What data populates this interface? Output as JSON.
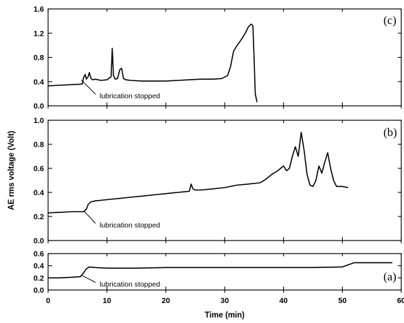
{
  "chart_data": {
    "type": "line",
    "xlabel": "Time (min)",
    "ylabel": "AE rms voltage (Volt)",
    "xlim": [
      0,
      60
    ],
    "x_ticks": [
      0,
      10,
      20,
      30,
      40,
      50,
      60
    ],
    "x_tick_labels": [
      "0",
      "10",
      "20",
      "30",
      "40",
      "50",
      "60"
    ],
    "grid": false,
    "panels": [
      {
        "label": "(c)",
        "ylim": [
          0,
          1.6
        ],
        "y_ticks": [
          0,
          0.4,
          0.8,
          1.2,
          1.6
        ],
        "y_tick_labels": [
          "0.0",
          "0.4",
          "0.8",
          "1.2",
          "1.6"
        ],
        "annotation": "lubrication stopped",
        "annotation_x": 6,
        "series": [
          {
            "x": [
              0,
              2,
              4,
              5.8,
              6,
              6.3,
              6.5,
              6.8,
              7,
              7.3,
              7.6,
              8,
              9,
              10,
              10.7,
              10.9,
              11.1,
              11.4,
              11.8,
              12.2,
              12.5,
              12.8,
              13.2,
              14,
              16,
              18,
              20,
              22,
              24,
              26,
              28,
              29.5,
              30.5,
              31,
              31.5,
              32,
              32.5,
              33,
              33.5,
              34,
              34.5,
              34.8,
              35,
              35.2,
              35.5
            ],
            "y": [
              0.33,
              0.34,
              0.35,
              0.36,
              0.46,
              0.52,
              0.44,
              0.48,
              0.55,
              0.45,
              0.43,
              0.44,
              0.42,
              0.43,
              0.48,
              0.95,
              0.5,
              0.44,
              0.45,
              0.6,
              0.62,
              0.45,
              0.43,
              0.42,
              0.41,
              0.41,
              0.41,
              0.42,
              0.43,
              0.44,
              0.44,
              0.45,
              0.5,
              0.65,
              0.9,
              0.98,
              1.05,
              1.12,
              1.2,
              1.3,
              1.35,
              1.32,
              0.8,
              0.2,
              0.06
            ]
          }
        ]
      },
      {
        "label": "(b)",
        "ylim": [
          0,
          1.0
        ],
        "y_ticks": [
          0,
          0.2,
          0.4,
          0.6,
          0.8,
          1.0
        ],
        "y_tick_labels": [
          "0.0",
          "0.2",
          "0.4",
          "0.6",
          "0.8",
          "1.0"
        ],
        "annotation": "lubrication stopped",
        "annotation_x": 6.5,
        "series": [
          {
            "x": [
              0,
              2,
              4,
              6,
              6.5,
              6.8,
              7.2,
              8,
              10,
              12,
              14,
              16,
              18,
              20,
              22,
              24,
              24.3,
              24.6,
              25,
              26,
              28,
              30,
              32,
              34,
              36,
              37,
              38,
              39,
              40,
              40.5,
              41,
              41.5,
              42,
              42.5,
              43,
              43.5,
              44,
              44.5,
              45,
              45.5,
              46,
              46.5,
              47,
              47.5,
              48,
              48.5,
              49,
              50,
              51
            ],
            "y": [
              0.23,
              0.235,
              0.24,
              0.24,
              0.26,
              0.3,
              0.32,
              0.33,
              0.34,
              0.35,
              0.36,
              0.37,
              0.38,
              0.39,
              0.4,
              0.41,
              0.47,
              0.43,
              0.42,
              0.42,
              0.43,
              0.44,
              0.46,
              0.47,
              0.48,
              0.51,
              0.55,
              0.58,
              0.62,
              0.58,
              0.6,
              0.7,
              0.78,
              0.7,
              0.9,
              0.75,
              0.55,
              0.46,
              0.45,
              0.5,
              0.62,
              0.56,
              0.65,
              0.73,
              0.6,
              0.5,
              0.45,
              0.45,
              0.44
            ]
          }
        ]
      },
      {
        "label": "(a)",
        "ylim": [
          0,
          0.6
        ],
        "y_ticks": [
          0,
          0.2,
          0.4,
          0.6
        ],
        "y_tick_labels": [
          "0.0",
          "0.2",
          "0.4",
          "0.6"
        ],
        "annotation": "lubrication stopped",
        "annotation_x": 6,
        "series": [
          {
            "x": [
              0,
              2,
              4,
              5.5,
              6,
              6.5,
              7,
              8,
              10,
              15,
              20,
              25,
              30,
              35,
              40,
              45,
              50,
              52,
              55,
              58.5
            ],
            "y": [
              0.2,
              0.2,
              0.21,
              0.22,
              0.28,
              0.35,
              0.38,
              0.37,
              0.36,
              0.36,
              0.37,
              0.37,
              0.37,
              0.37,
              0.37,
              0.37,
              0.38,
              0.45,
              0.45,
              0.45
            ]
          }
        ]
      }
    ]
  }
}
